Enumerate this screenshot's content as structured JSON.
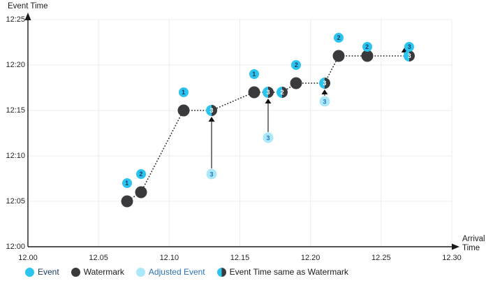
{
  "axes": {
    "y_title": "Event Time",
    "x_title_line1": "Arrival",
    "x_title_line2": "Time",
    "y_ticks": [
      "12:00",
      "12:05",
      "12:10",
      "12:15",
      "12:20",
      "12:25"
    ],
    "x_ticks": [
      "12.00",
      "12.05",
      "12.10",
      "12.15",
      "12.20",
      "12.25",
      "12.30"
    ]
  },
  "legend": {
    "items": [
      {
        "label": "Event",
        "type": "event",
        "text_color": "#16385f"
      },
      {
        "label": "Watermark",
        "type": "watermark",
        "text_color": "#1a1a1a"
      },
      {
        "label": "Adjusted Event",
        "type": "adjusted",
        "text_color": "#2b72b8"
      },
      {
        "label": "Event Time same as Watermark",
        "type": "same",
        "text_color": "#1a1a1a"
      }
    ]
  },
  "colors": {
    "event": "#2ac4ee",
    "watermark": "#3a3a3c",
    "adjusted": "#aae8f9",
    "event_number": "#16385f",
    "adjusted_number": "#2b72b8",
    "grid": "#ececec",
    "axis": "#1a1a1a",
    "dotted_line": "#2e2e2e",
    "arrow_shaft": "#666666",
    "arrow_head": "#111111"
  },
  "chart_data": {
    "type": "scatter",
    "title": "",
    "xlabel": "Arrival Time",
    "ylabel": "Event Time",
    "x_tick_labels": [
      "12.00",
      "12.05",
      "12.10",
      "12.15",
      "12.20",
      "12.25",
      "12.30"
    ],
    "y_tick_labels": [
      "12:00",
      "12:05",
      "12:10",
      "12:15",
      "12:20",
      "12:25"
    ],
    "x_range_minutes_after_1200": [
      0,
      30
    ],
    "y_range_minutes_after_1200": [
      0,
      25
    ],
    "grid": true,
    "legend_position": "bottom",
    "series": [
      {
        "name": "Event",
        "points": [
          {
            "label": "1",
            "arrival": "12.07",
            "event_time": "12:07"
          },
          {
            "label": "2",
            "arrival": "12.08",
            "event_time": "12:08"
          },
          {
            "label": "1",
            "arrival": "12.11",
            "event_time": "12:17"
          },
          {
            "label": "1",
            "arrival": "12.16",
            "event_time": "12:19"
          },
          {
            "label": "2",
            "arrival": "12.19",
            "event_time": "12:20"
          },
          {
            "label": "2",
            "arrival": "12.22",
            "event_time": "12:23"
          },
          {
            "label": "2",
            "arrival": "12.24",
            "event_time": "12:22"
          },
          {
            "label": "3",
            "arrival": "12.27",
            "event_time": "12:22"
          }
        ]
      },
      {
        "name": "Watermark",
        "points": [
          {
            "label": "",
            "arrival": "12.07",
            "event_time": "12:05"
          },
          {
            "label": "",
            "arrival": "12.08",
            "event_time": "12:06"
          },
          {
            "label": "",
            "arrival": "12.11",
            "event_time": "12:15"
          },
          {
            "label": "",
            "arrival": "12.16",
            "event_time": "12:17"
          },
          {
            "label": "",
            "arrival": "12.19",
            "event_time": "12:18"
          },
          {
            "label": "",
            "arrival": "12.22",
            "event_time": "12:21"
          },
          {
            "label": "",
            "arrival": "12.24",
            "event_time": "12:21"
          }
        ]
      },
      {
        "name": "Adjusted Event",
        "points": [
          {
            "label": "3",
            "arrival": "12.13",
            "event_time": "12:08"
          },
          {
            "label": "3",
            "arrival": "12.17",
            "event_time": "12:12"
          },
          {
            "label": "3",
            "arrival": "12.21",
            "event_time": "12:16"
          }
        ]
      },
      {
        "name": "Event Time same as Watermark",
        "points": [
          {
            "label": "3",
            "arrival": "12.13",
            "event_time": "12:15"
          },
          {
            "label": "3",
            "arrival": "12.17",
            "event_time": "12:17"
          },
          {
            "label": "2",
            "arrival": "12.18",
            "event_time": "12:17"
          },
          {
            "label": "3",
            "arrival": "12.21",
            "event_time": "12:18"
          },
          {
            "label": "3",
            "arrival": "12.27",
            "event_time": "12:21"
          }
        ]
      }
    ],
    "watermark_line": [
      {
        "arrival": "12.07",
        "value": "12:05"
      },
      {
        "arrival": "12.08",
        "value": "12:06"
      },
      {
        "arrival": "12.11",
        "value": "12:15"
      },
      {
        "arrival": "12.13",
        "value": "12:15"
      },
      {
        "arrival": "12.16",
        "value": "12:17"
      },
      {
        "arrival": "12.17",
        "value": "12:17"
      },
      {
        "arrival": "12.18",
        "value": "12:17"
      },
      {
        "arrival": "12.19",
        "value": "12:18"
      },
      {
        "arrival": "12.21",
        "value": "12:18"
      },
      {
        "arrival": "12.22",
        "value": "12:21"
      },
      {
        "arrival": "12.24",
        "value": "12:21"
      },
      {
        "arrival": "12.27",
        "value": "12:21"
      }
    ],
    "adjustment_arrows": [
      {
        "arrival": "12.13",
        "from": "12:08",
        "to": "12:15",
        "variant": "long",
        "dx": 0
      },
      {
        "arrival": "12.17",
        "from": "12:12",
        "to": "12:17",
        "variant": "long",
        "dx": 0
      },
      {
        "arrival": "12.21",
        "from": "12:16",
        "to": "12:18",
        "variant": "long",
        "dx": 0
      },
      {
        "arrival": "12.27",
        "from": "12:21",
        "to": "12:22",
        "variant": "short",
        "dx": -7
      }
    ]
  }
}
